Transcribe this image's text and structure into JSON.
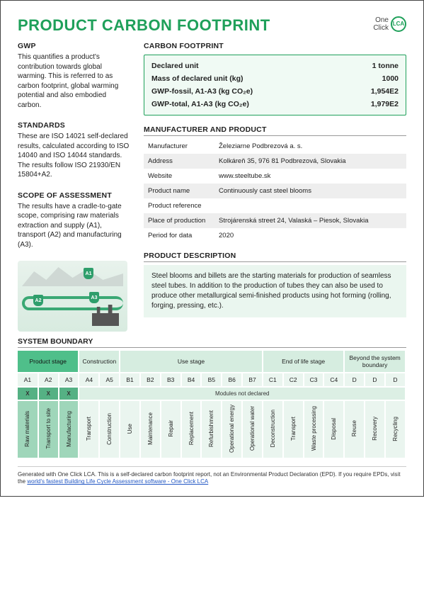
{
  "title": "PRODUCT CARBON FOOTPRINT",
  "logo": {
    "line1": "One",
    "line2": "Click",
    "badge": "LCA"
  },
  "left": {
    "gwp": {
      "h": "GWP",
      "p": "This quantifies a product's contribution towards global warming. This is referred to as carbon footprint, global warming potential and also embodied carbon."
    },
    "standards": {
      "h": "STANDARDS",
      "p": "These are ISO 14021 self-declared results, calculated according to ISO 14040 and ISO 14044 standards. The results follow ISO 21930/EN 15804+A2."
    },
    "scope": {
      "h": "SCOPE OF ASSESSMENT",
      "p": "The results have a cradle-to-gate scope, comprising raw materials extraction and supply (A1), transport (A2) and manufacturing (A3)."
    }
  },
  "cf": {
    "h": "CARBON FOOTPRINT",
    "rows": [
      {
        "k": "Declared unit",
        "v": "1 tonne"
      },
      {
        "k": "Mass of declared unit (kg)",
        "v": "1000"
      },
      {
        "k": "GWP-fossil, A1-A3 (kg CO₂e)",
        "v": "1,954E2"
      },
      {
        "k": "GWP-total, A1-A3 (kg CO₂e)",
        "v": "1,979E2"
      }
    ]
  },
  "mp": {
    "h": "MANUFACTURER AND PRODUCT",
    "rows": [
      {
        "k": "Manufacturer",
        "v": "Železiarne Podbrezová a. s."
      },
      {
        "k": "Address",
        "v": "Kolkáreň 35, 976 81 Podbrezová, Slovakia"
      },
      {
        "k": "Website",
        "v": "www.steeltube.sk"
      },
      {
        "k": "Product name",
        "v": "Continuously cast steel blooms"
      },
      {
        "k": "Product reference",
        "v": ""
      },
      {
        "k": "Place of production",
        "v": "Strojárenská street 24, Valaská – Piesok, Slovakia"
      },
      {
        "k": "Period for data",
        "v": "2020"
      }
    ]
  },
  "desc": {
    "h": "PRODUCT DESCRIPTION",
    "p": "Steel blooms and billets are the starting materials for production of seamless steel tubes. In addition to the production of tubes they can also be used to produce other metallurgical semi-finished products using hot forming (rolling, forging, pressing, etc.)."
  },
  "sys": {
    "h": "SYSTEM BOUNDARY",
    "stages": [
      {
        "label": "Product stage",
        "span": 3,
        "cls": "prod"
      },
      {
        "label": "Construction",
        "span": 2,
        "cls": ""
      },
      {
        "label": "Use stage",
        "span": 7,
        "cls": ""
      },
      {
        "label": "End of life stage",
        "span": 4,
        "cls": ""
      },
      {
        "label": "Beyond the system boundary",
        "span": 3,
        "cls": ""
      }
    ],
    "codes": [
      "A1",
      "A2",
      "A3",
      "A4",
      "A5",
      "B1",
      "B2",
      "B3",
      "B4",
      "B5",
      "B6",
      "B7",
      "C1",
      "C2",
      "C3",
      "C4",
      "D",
      "D",
      "D"
    ],
    "declared": [
      true,
      true,
      true,
      false,
      false,
      false,
      false,
      false,
      false,
      false,
      false,
      false,
      false,
      false,
      false,
      false,
      false,
      false,
      false
    ],
    "mnd_label": "Modules not declared",
    "names": [
      "Raw materials",
      "Transport to site",
      "Manufacturing",
      "Transport",
      "Construction",
      "Use",
      "Maintenance",
      "Repair",
      "Replacement",
      "Refurbishment",
      "Operational energy",
      "Operational water",
      "Deconstruction",
      "Transport",
      "Waste processing",
      "Disposal",
      "Reuse",
      "Recovery",
      "Recycling"
    ]
  },
  "footer": {
    "text": "Generated with One Click LCA. This is a self-declared carbon footprint report, not an Environmental Product Declaration (EPD). If you require EPDs, visit the ",
    "link": "world's fastest Building Life Cycle Assessment software - One Click LCA"
  },
  "colors": {
    "brand": "#1fa05a",
    "lightgreen": "#eaf6ef"
  }
}
